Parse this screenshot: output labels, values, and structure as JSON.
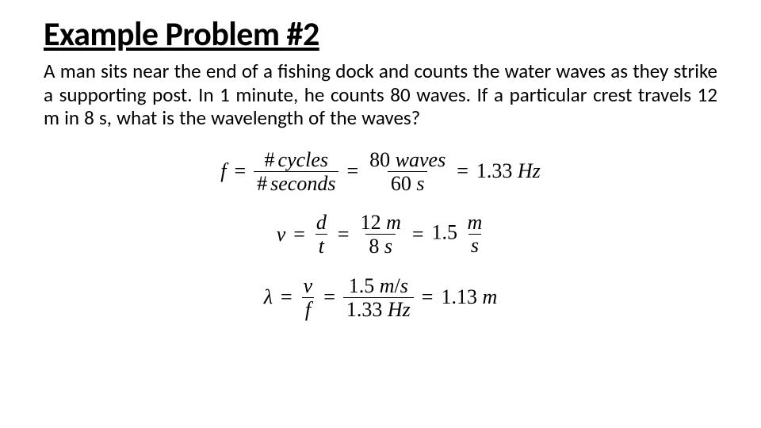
{
  "title": "Example Problem #2",
  "problem": "A man sits near the end of a fishing dock and counts the water waves as they strike a supporting post.  In 1 minute, he counts 80 waves.  If a particular crest travels 12 m in 8 s, what is the wavelength of the waves?",
  "colors": {
    "background": "#ffffff",
    "text": "#000000"
  },
  "equations": {
    "freq": {
      "lhs": "f",
      "frac1_num": "# cycles",
      "frac1_den": "# seconds",
      "frac2_num": "80 waves",
      "frac2_den": "60 s",
      "result": "1.33 Hz"
    },
    "vel": {
      "lhs": "v",
      "frac1_num": "d",
      "frac1_den": "t",
      "frac2_num": "12 m",
      "frac2_den": "8 s",
      "result_val": "1.5",
      "result_unit_num": "m",
      "result_unit_den": "s"
    },
    "lambda": {
      "lhs": "λ",
      "frac1_num": "v",
      "frac1_den": "f",
      "frac2_num": "1.5 m/s",
      "frac2_den": "1.33 Hz",
      "result": "1.13 m"
    }
  },
  "typography": {
    "title_fontsize": 42,
    "body_fontsize": 25,
    "equation_fontsize": 26,
    "title_weight": 700
  }
}
